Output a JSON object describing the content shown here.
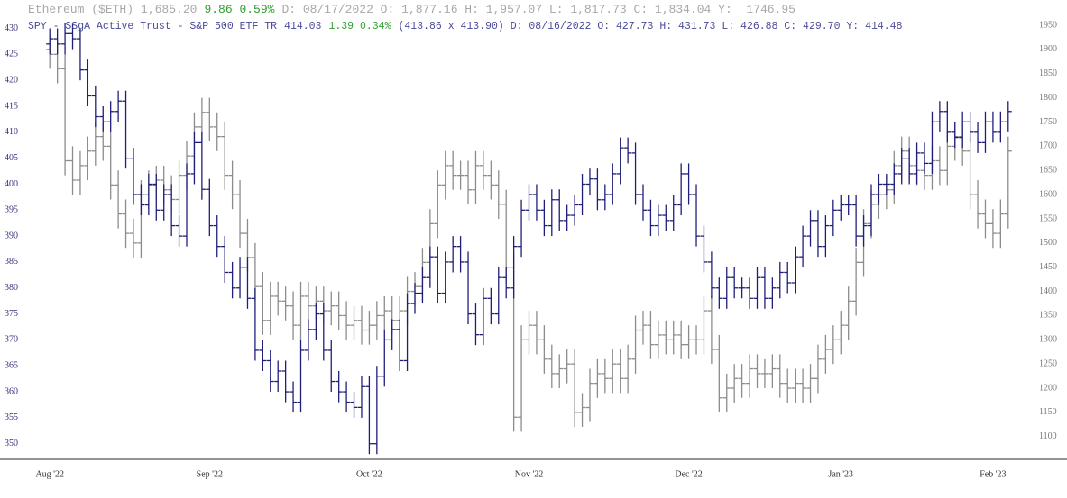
{
  "chart_data": {
    "type": "ohlc",
    "categories": [
      "Aug '22",
      null,
      null,
      null,
      null,
      null,
      null,
      null,
      null,
      null,
      null,
      null,
      null,
      null,
      null,
      null,
      null,
      null,
      null,
      null,
      null,
      "Sep '22",
      null,
      null,
      null,
      null,
      null,
      null,
      null,
      null,
      null,
      null,
      null,
      null,
      null,
      null,
      null,
      null,
      null,
      null,
      null,
      null,
      "Oct '22",
      null,
      null,
      null,
      null,
      null,
      null,
      null,
      null,
      null,
      null,
      null,
      null,
      null,
      null,
      null,
      null,
      null,
      null,
      null,
      null,
      "Nov '22",
      null,
      null,
      null,
      null,
      null,
      null,
      null,
      null,
      null,
      null,
      null,
      null,
      null,
      null,
      null,
      null,
      null,
      null,
      null,
      null,
      "Dec '22",
      null,
      null,
      null,
      null,
      null,
      null,
      null,
      null,
      null,
      null,
      null,
      null,
      null,
      null,
      null,
      null,
      null,
      null,
      null,
      "Jan '23",
      null,
      null,
      null,
      null,
      null,
      null,
      null,
      null,
      null,
      null,
      null,
      null,
      null,
      null,
      null,
      null,
      null,
      null,
      null,
      "Feb '23",
      null,
      null
    ],
    "ylim": [
      347,
      432
    ],
    "yticks": [
      350,
      355,
      360,
      365,
      370,
      375,
      380,
      385,
      390,
      395,
      400,
      405,
      410,
      415,
      420,
      425,
      430
    ],
    "y2lim": [
      1053,
      1965
    ],
    "y2ticks": [
      1100,
      1150,
      1200,
      1250,
      1300,
      1350,
      1400,
      1450,
      1500,
      1550,
      1600,
      1650,
      1700,
      1750,
      1800,
      1850,
      1900,
      1950
    ],
    "series": [
      {
        "name": "Ethereum ($ETH)",
        "quote": "1,685.20",
        "change": "9.86 0.59%",
        "details": "D: 08/17/2022 O: 1,877.16 H: 1,957.07 L: 1,817.73 C: 1,834.04 Y:  1746.95",
        "color": "#8c8c8c",
        "axis": "y2",
        "open": [
          1900,
          1890,
          1860,
          1670,
          1630,
          1660,
          1690,
          1720,
          1700,
          1620,
          1560,
          1520,
          1500,
          1600,
          1620,
          1630,
          1610,
          1590,
          1640,
          1680,
          1740,
          1770,
          1740,
          1720,
          1640,
          1600,
          1520,
          1470,
          1410,
          1340,
          1390,
          1380,
          1370,
          1330,
          1390,
          1370,
          1380,
          1360,
          1370,
          1350,
          1330,
          1340,
          1320,
          1330,
          1350,
          1360,
          1340,
          1360,
          1400,
          1410,
          1460,
          1540,
          1620,
          1660,
          1640,
          1640,
          1610,
          1660,
          1640,
          1620,
          1580,
          1450,
          1140,
          1300,
          1330,
          1300,
          1260,
          1230,
          1240,
          1250,
          1150,
          1160,
          1210,
          1230,
          1220,
          1250,
          1220,
          1260,
          1320,
          1330,
          1290,
          1310,
          1300,
          1310,
          1290,
          1300,
          1300,
          1360,
          1280,
          1180,
          1200,
          1220,
          1210,
          1240,
          1230,
          1230,
          1240,
          1210,
          1200,
          1210,
          1200,
          1220,
          1260,
          1280,
          1300,
          1330,
          1380,
          1460,
          1540,
          1580,
          1600,
          1610,
          1660,
          1690,
          1660,
          1650,
          1640,
          1670,
          1650,
          1700,
          1720,
          1690,
          1600,
          1560,
          1540,
          1520,
          1560
        ],
        "high": [
          1930,
          1920,
          1890,
          1700,
          1690,
          1720,
          1750,
          1750,
          1730,
          1650,
          1590,
          1550,
          1630,
          1650,
          1660,
          1660,
          1640,
          1670,
          1710,
          1770,
          1800,
          1800,
          1770,
          1750,
          1670,
          1630,
          1550,
          1500,
          1440,
          1420,
          1420,
          1410,
          1400,
          1420,
          1420,
          1410,
          1410,
          1400,
          1400,
          1380,
          1370,
          1370,
          1360,
          1380,
          1390,
          1390,
          1390,
          1430,
          1440,
          1490,
          1570,
          1650,
          1690,
          1690,
          1670,
          1670,
          1690,
          1690,
          1670,
          1650,
          1610,
          1480,
          1330,
          1360,
          1360,
          1330,
          1290,
          1270,
          1280,
          1280,
          1190,
          1240,
          1260,
          1260,
          1280,
          1280,
          1290,
          1350,
          1360,
          1360,
          1340,
          1340,
          1340,
          1340,
          1330,
          1330,
          1390,
          1390,
          1310,
          1230,
          1250,
          1250,
          1270,
          1270,
          1260,
          1270,
          1270,
          1240,
          1240,
          1240,
          1250,
          1290,
          1310,
          1330,
          1360,
          1410,
          1490,
          1570,
          1610,
          1630,
          1640,
          1690,
          1720,
          1720,
          1690,
          1680,
          1700,
          1700,
          1730,
          1750,
          1750,
          1720,
          1630,
          1590,
          1570,
          1590,
          1720
        ],
        "low": [
          1860,
          1830,
          1640,
          1600,
          1600,
          1630,
          1660,
          1670,
          1590,
          1530,
          1490,
          1470,
          1470,
          1570,
          1590,
          1580,
          1560,
          1560,
          1610,
          1650,
          1710,
          1710,
          1690,
          1610,
          1570,
          1490,
          1440,
          1380,
          1310,
          1310,
          1350,
          1340,
          1300,
          1300,
          1340,
          1340,
          1330,
          1330,
          1320,
          1300,
          1300,
          1290,
          1290,
          1300,
          1320,
          1310,
          1310,
          1330,
          1370,
          1380,
          1430,
          1510,
          1590,
          1610,
          1610,
          1580,
          1580,
          1610,
          1590,
          1550,
          1420,
          1110,
          1110,
          1270,
          1270,
          1230,
          1200,
          1200,
          1210,
          1120,
          1120,
          1130,
          1180,
          1190,
          1190,
          1190,
          1190,
          1230,
          1290,
          1260,
          1260,
          1270,
          1270,
          1260,
          1260,
          1270,
          1270,
          1250,
          1150,
          1150,
          1170,
          1180,
          1180,
          1200,
          1200,
          1200,
          1180,
          1170,
          1170,
          1170,
          1170,
          1190,
          1230,
          1250,
          1270,
          1300,
          1350,
          1430,
          1510,
          1550,
          1570,
          1580,
          1630,
          1630,
          1620,
          1610,
          1610,
          1620,
          1620,
          1670,
          1660,
          1570,
          1530,
          1510,
          1490,
          1490,
          1530
        ],
        "close": [
          1890,
          1860,
          1670,
          1630,
          1660,
          1690,
          1720,
          1700,
          1620,
          1560,
          1520,
          1500,
          1600,
          1620,
          1630,
          1610,
          1590,
          1640,
          1680,
          1740,
          1770,
          1740,
          1720,
          1640,
          1600,
          1520,
          1470,
          1410,
          1340,
          1390,
          1380,
          1370,
          1330,
          1390,
          1370,
          1380,
          1360,
          1370,
          1350,
          1330,
          1340,
          1320,
          1330,
          1350,
          1360,
          1340,
          1360,
          1400,
          1410,
          1460,
          1540,
          1620,
          1660,
          1640,
          1640,
          1610,
          1660,
          1640,
          1620,
          1580,
          1450,
          1140,
          1300,
          1330,
          1300,
          1260,
          1230,
          1240,
          1250,
          1150,
          1160,
          1210,
          1230,
          1220,
          1250,
          1220,
          1260,
          1320,
          1330,
          1290,
          1310,
          1300,
          1310,
          1290,
          1300,
          1300,
          1360,
          1280,
          1180,
          1200,
          1220,
          1210,
          1240,
          1230,
          1230,
          1240,
          1210,
          1200,
          1210,
          1200,
          1220,
          1260,
          1280,
          1300,
          1330,
          1380,
          1460,
          1540,
          1580,
          1600,
          1610,
          1660,
          1690,
          1660,
          1650,
          1640,
          1670,
          1650,
          1700,
          1720,
          1690,
          1600,
          1560,
          1540,
          1520,
          1560,
          1690
        ]
      },
      {
        "name": "SPY - SSgA Active Trust - S&P 500 ETF TR",
        "quote": "414.03",
        "change": "1.39 0.34%",
        "details": "(413.86 x 413.90) D: 08/16/2022 O: 427.73 H: 431.73 L: 426.88 C: 429.70 Y: 414.48",
        "color": "#1f1f7a",
        "axis": "y",
        "open": [
          427,
          428,
          427,
          429,
          428,
          422,
          417,
          413,
          412,
          414,
          416,
          405,
          398,
          396,
          400,
          395,
          398,
          392,
          390,
          402,
          408,
          399,
          392,
          388,
          383,
          380,
          384,
          378,
          368,
          366,
          362,
          364,
          360,
          358,
          368,
          372,
          375,
          368,
          362,
          360,
          358,
          357,
          361,
          350,
          363,
          370,
          372,
          366,
          377,
          379,
          382,
          386,
          379,
          385,
          388,
          385,
          375,
          371,
          378,
          375,
          382,
          380,
          388,
          395,
          398,
          395,
          392,
          397,
          393,
          394,
          396,
          400,
          401,
          397,
          398,
          402,
          407,
          406,
          398,
          395,
          392,
          394,
          393,
          396,
          402,
          398,
          390,
          385,
          380,
          378,
          382,
          380,
          380,
          378,
          382,
          378,
          380,
          383,
          381,
          386,
          390,
          393,
          388,
          392,
          395,
          396,
          396,
          390,
          392,
          398,
          400,
          400,
          402,
          405,
          402,
          406,
          404,
          412,
          414,
          410,
          409,
          412,
          410,
          408,
          412,
          410,
          412
        ],
        "high": [
          430,
          430,
          431,
          431,
          430,
          424,
          419,
          415,
          416,
          418,
          418,
          407,
          400,
          402,
          402,
          400,
          400,
          394,
          404,
          410,
          410,
          401,
          394,
          390,
          385,
          386,
          386,
          380,
          370,
          368,
          366,
          366,
          362,
          370,
          374,
          377,
          377,
          370,
          364,
          362,
          360,
          363,
          363,
          365,
          372,
          374,
          374,
          379,
          381,
          384,
          388,
          388,
          387,
          390,
          390,
          387,
          377,
          380,
          380,
          384,
          384,
          390,
          397,
          400,
          400,
          397,
          399,
          399,
          396,
          398,
          402,
          403,
          403,
          400,
          404,
          409,
          409,
          408,
          400,
          397,
          396,
          396,
          398,
          404,
          404,
          400,
          392,
          387,
          382,
          384,
          384,
          382,
          382,
          384,
          384,
          382,
          385,
          385,
          388,
          392,
          395,
          395,
          394,
          397,
          398,
          398,
          398,
          394,
          400,
          402,
          402,
          404,
          407,
          407,
          408,
          408,
          414,
          416,
          416,
          412,
          414,
          414,
          412,
          414,
          414,
          414,
          416
        ],
        "low": [
          425,
          425,
          425,
          426,
          420,
          415,
          411,
          410,
          410,
          412,
          403,
          396,
          394,
          394,
          393,
          393,
          390,
          388,
          388,
          400,
          397,
          390,
          386,
          381,
          378,
          378,
          376,
          366,
          364,
          360,
          360,
          358,
          356,
          356,
          366,
          370,
          366,
          360,
          358,
          356,
          355,
          355,
          348,
          348,
          361,
          368,
          364,
          364,
          375,
          377,
          380,
          377,
          377,
          383,
          383,
          373,
          369,
          369,
          373,
          373,
          378,
          378,
          386,
          393,
          393,
          390,
          390,
          391,
          391,
          392,
          394,
          398,
          395,
          395,
          396,
          400,
          404,
          396,
          393,
          390,
          390,
          391,
          391,
          394,
          396,
          388,
          383,
          378,
          376,
          376,
          378,
          378,
          376,
          376,
          376,
          376,
          378,
          379,
          379,
          384,
          388,
          386,
          386,
          390,
          393,
          394,
          388,
          388,
          390,
          396,
          398,
          398,
          400,
          400,
          400,
          402,
          402,
          410,
          408,
          407,
          407,
          408,
          406,
          406,
          408,
          408,
          410
        ],
        "close": [
          428,
          427,
          429,
          428,
          422,
          417,
          413,
          412,
          414,
          416,
          405,
          398,
          396,
          400,
          395,
          398,
          392,
          390,
          402,
          408,
          399,
          392,
          388,
          383,
          380,
          384,
          378,
          368,
          366,
          362,
          364,
          360,
          358,
          368,
          372,
          375,
          368,
          362,
          360,
          358,
          357,
          361,
          350,
          363,
          370,
          372,
          366,
          377,
          379,
          382,
          386,
          379,
          385,
          388,
          385,
          375,
          371,
          378,
          375,
          382,
          380,
          388,
          395,
          398,
          395,
          392,
          397,
          393,
          394,
          396,
          400,
          401,
          397,
          398,
          402,
          407,
          406,
          398,
          395,
          392,
          394,
          393,
          396,
          402,
          398,
          390,
          385,
          380,
          378,
          382,
          380,
          380,
          378,
          382,
          378,
          380,
          383,
          381,
          386,
          390,
          393,
          388,
          392,
          395,
          396,
          396,
          390,
          392,
          398,
          400,
          400,
          402,
          405,
          402,
          406,
          404,
          412,
          414,
          410,
          409,
          412,
          410,
          408,
          412,
          410,
          412,
          414
        ]
      }
    ]
  }
}
